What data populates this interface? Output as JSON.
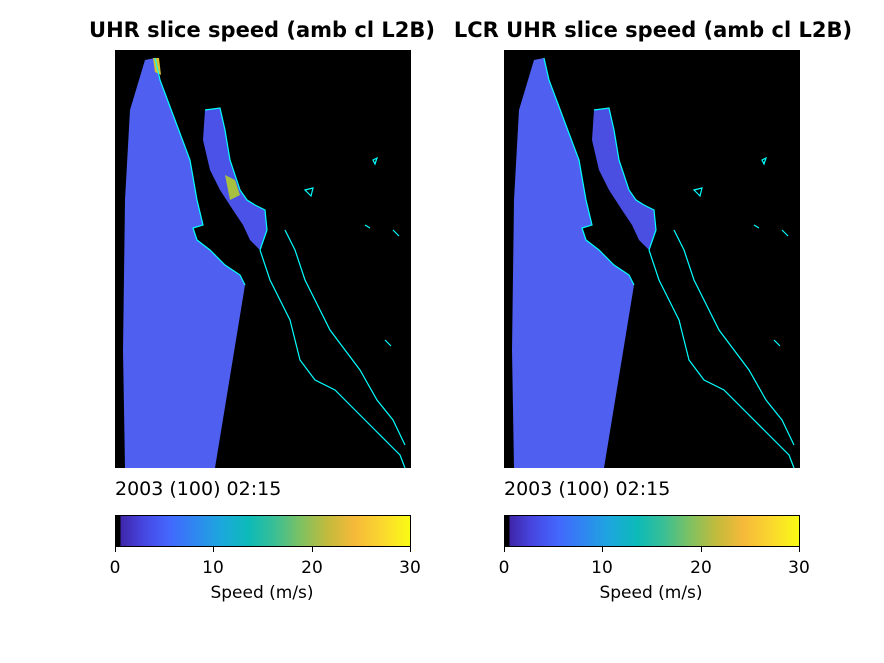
{
  "panels": [
    {
      "title": "UHR slice speed (amb cl L2B)",
      "timestamp": "2003 (100) 02:15",
      "colorbar_label": "Speed (m/s)",
      "colorbar_ticks": [
        "0",
        "10",
        "20",
        "30"
      ]
    },
    {
      "title": "LCR UHR slice speed (amb cl L2B)",
      "timestamp": "2003 (100) 02:15",
      "colorbar_label": "Speed (m/s)",
      "colorbar_ticks": [
        "0",
        "10",
        "20",
        "30"
      ]
    }
  ],
  "colors": {
    "background_land": "#000000",
    "ocean_speed_low": "#4f5ff0",
    "coastline": "#00ffff",
    "colormap": "parula"
  }
}
